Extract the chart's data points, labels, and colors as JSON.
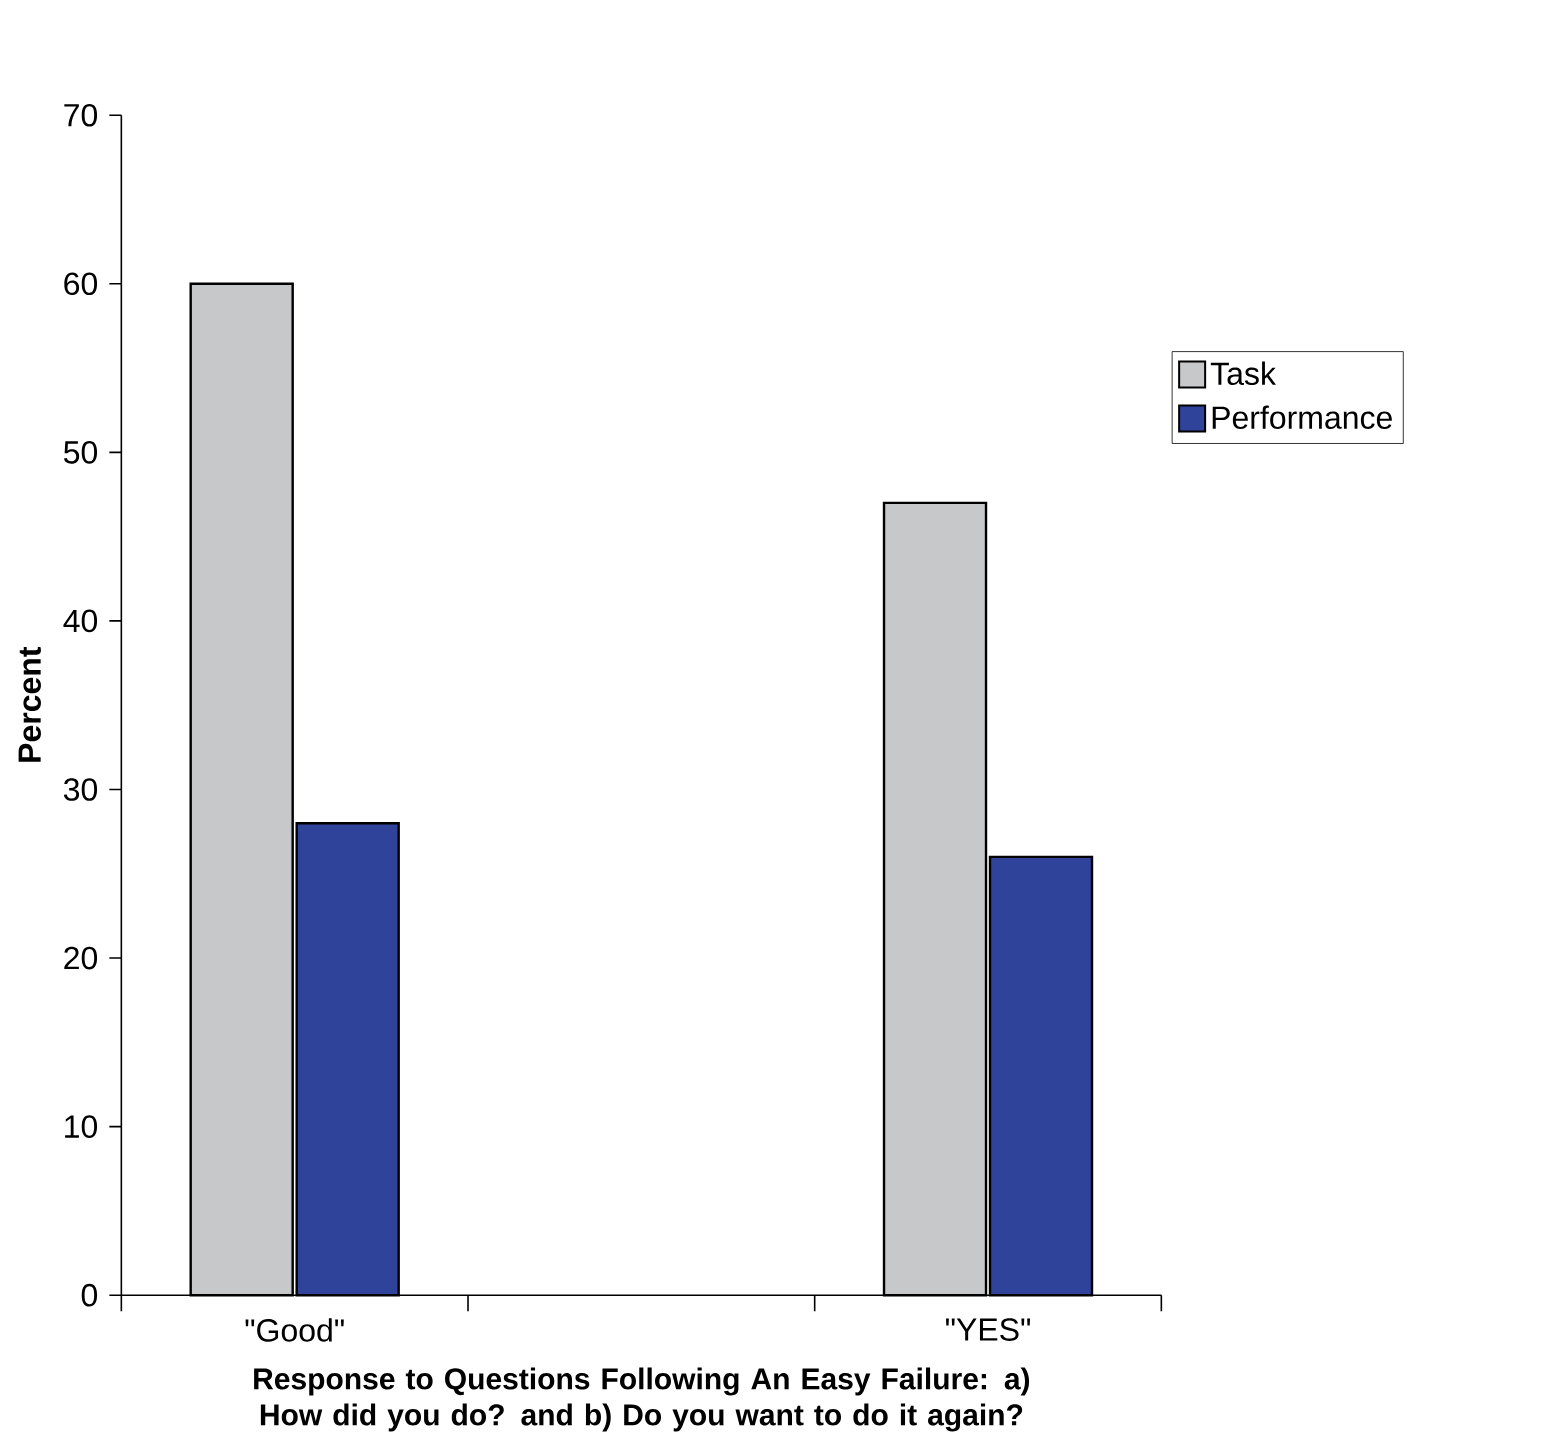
{
  "chart_data": {
    "type": "bar",
    "xlabel": "Response to Questions Following An Easy Failure: a) How did you do? and b) Do you want to do it again?",
    "ylabel": "Percent",
    "categories": [
      "\"Good\"",
      null,
      "\"YES\""
    ],
    "series": [
      {
        "name": "Task",
        "color": "#c7c8ca",
        "values": [
          60,
          null,
          47
        ]
      },
      {
        "name": "Performance",
        "color": "#2e4399",
        "values": [
          28,
          null,
          26
        ]
      }
    ],
    "ylim": [
      0,
      70
    ],
    "yticks": [
      0,
      10,
      20,
      30,
      40,
      50,
      60,
      70
    ],
    "legend": "right"
  }
}
